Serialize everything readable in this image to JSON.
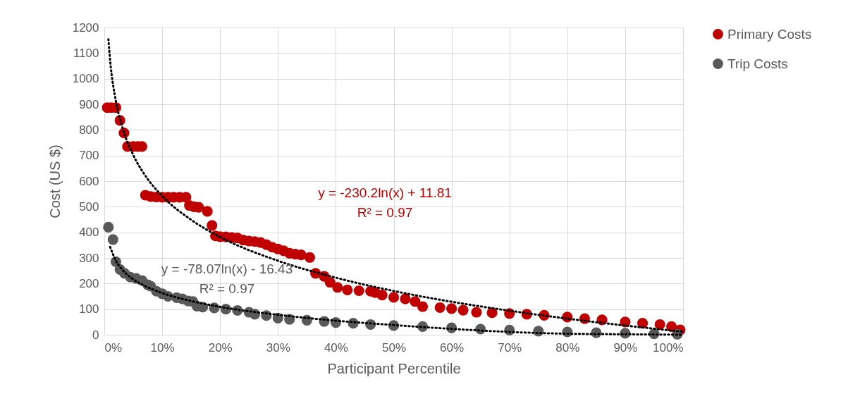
{
  "chart_data": {
    "type": "scatter",
    "xlabel": "Participant Percentile",
    "ylabel": "Cost (US $)",
    "xlim": [
      0,
      1
    ],
    "xticks": [
      {
        "value": 0,
        "label": "0%"
      },
      {
        "value": 0.1,
        "label": "10%"
      },
      {
        "value": 0.2,
        "label": "20%"
      },
      {
        "value": 0.3,
        "label": "30%"
      },
      {
        "value": 0.4,
        "label": "40%"
      },
      {
        "value": 0.5,
        "label": "50%"
      },
      {
        "value": 0.6,
        "label": "60%"
      },
      {
        "value": 0.7,
        "label": "70%"
      },
      {
        "value": 0.8,
        "label": "80%"
      },
      {
        "value": 0.9,
        "label": "90%"
      },
      {
        "value": 1,
        "label": "100%"
      }
    ],
    "ylim": [
      0,
      1200
    ],
    "yticks": [
      0,
      100,
      200,
      300,
      400,
      500,
      600,
      700,
      800,
      900,
      1000,
      1100,
      1200
    ],
    "grid": true,
    "legend": "right",
    "marker": "circle",
    "series": [
      {
        "name": "Primary Costs",
        "color": "#c00000",
        "x": [
          0.005,
          0.012,
          0.02,
          0.027,
          0.034,
          0.04,
          0.05,
          0.058,
          0.065,
          0.071,
          0.08,
          0.09,
          0.1,
          0.11,
          0.12,
          0.13,
          0.141,
          0.147,
          0.155,
          0.163,
          0.178,
          0.186,
          0.192,
          0.2,
          0.21,
          0.22,
          0.23,
          0.24,
          0.25,
          0.26,
          0.27,
          0.28,
          0.29,
          0.3,
          0.31,
          0.32,
          0.33,
          0.34,
          0.355,
          0.365,
          0.38,
          0.39,
          0.403,
          0.42,
          0.44,
          0.46,
          0.468,
          0.48,
          0.5,
          0.52,
          0.537,
          0.55,
          0.58,
          0.6,
          0.62,
          0.643,
          0.67,
          0.7,
          0.73,
          0.76,
          0.8,
          0.83,
          0.86,
          0.9,
          0.93,
          0.96,
          0.98,
          0.995
        ],
        "values": [
          887,
          887,
          887,
          837,
          788,
          735,
          735,
          735,
          735,
          545,
          540,
          538,
          537,
          537,
          537,
          537,
          537,
          505,
          500,
          498,
          482,
          427,
          386,
          383,
          382,
          380,
          378,
          370,
          366,
          364,
          360,
          352,
          342,
          335,
          328,
          318,
          315,
          312,
          302,
          240,
          228,
          205,
          185,
          175,
          172,
          170,
          165,
          155,
          146,
          140,
          130,
          110,
          106,
          102,
          96,
          88,
          86,
          83,
          80,
          76,
          69,
          63,
          58,
          50,
          45,
          40,
          32,
          19
        ]
      },
      {
        "name": "Trip Costs",
        "color": "#595959",
        "x": [
          0.007,
          0.015,
          0.02,
          0.027,
          0.035,
          0.045,
          0.055,
          0.065,
          0.075,
          0.08,
          0.09,
          0.1,
          0.11,
          0.125,
          0.135,
          0.145,
          0.153,
          0.16,
          0.17,
          0.19,
          0.21,
          0.23,
          0.25,
          0.26,
          0.28,
          0.3,
          0.32,
          0.35,
          0.38,
          0.4,
          0.43,
          0.46,
          0.5,
          0.55,
          0.6,
          0.65,
          0.7,
          0.75,
          0.8,
          0.85,
          0.9,
          0.95,
          0.99
        ],
        "values": [
          420,
          372,
          285,
          255,
          240,
          225,
          220,
          212,
          195,
          190,
          170,
          160,
          150,
          145,
          140,
          132,
          130,
          112,
          108,
          105,
          100,
          95,
          88,
          80,
          75,
          65,
          60,
          57,
          52,
          48,
          45,
          40,
          36,
          32,
          27,
          22,
          18,
          14,
          11,
          8,
          6,
          4,
          2
        ]
      },
      {
        "type": "line",
        "color": "#000000",
        "line_style": "dotted",
        "marker": "none",
        "x": [
          0.007,
          0.01,
          0.02,
          0.03,
          0.05,
          0.07,
          0.1,
          0.15,
          0.2,
          0.3,
          0.4,
          0.5,
          0.6,
          0.7,
          0.8,
          0.9,
          1
        ],
        "values": [
          1154,
          1072,
          912,
          819,
          702,
          624,
          542,
          449,
          382,
          289,
          223,
          171,
          129,
          94,
          63,
          36,
          12
        ]
      },
      {
        "type": "line",
        "color": "#000000",
        "line_style": "dotted",
        "marker": "none",
        "x": [
          0.01,
          0.02,
          0.03,
          0.05,
          0.07,
          0.1,
          0.15,
          0.2,
          0.3,
          0.4,
          0.5,
          0.6,
          0.7,
          0.8,
          0.9,
          1
        ],
        "values": [
          343,
          289,
          257,
          217,
          191,
          163,
          132,
          109,
          78,
          55,
          38,
          23,
          11,
          4,
          2,
          0
        ]
      }
    ],
    "annotations": [
      "y = -230.2ln(x) + 11.81",
      "R² = 0.97",
      "y = -78.07ln(x) - 16.43",
      "R² = 0.97"
    ]
  }
}
